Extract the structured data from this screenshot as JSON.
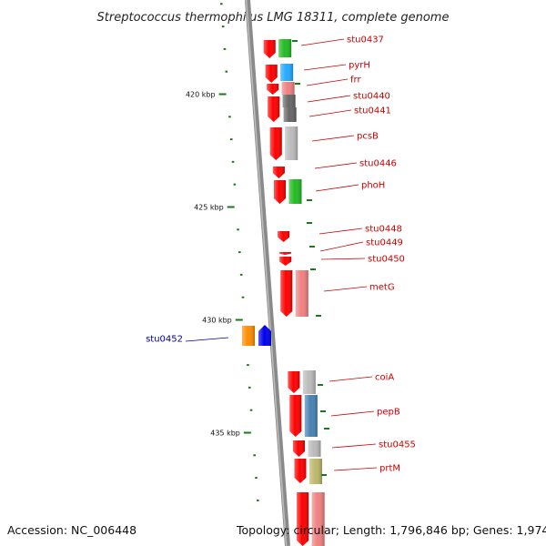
{
  "title": "Streptococcus thermophilus LMG 18311, complete genome",
  "colors": {
    "cds": "#ff0000",
    "backbone": "#808080",
    "tick": "#1a7a1a",
    "label_forward": "#cc0000",
    "label_reverse": "#000099"
  },
  "ticks": [
    {
      "label": "420 kbp",
      "kbp": 420
    },
    {
      "label": "425 kbp",
      "kbp": 425
    },
    {
      "label": "430 kbp",
      "kbp": 430
    },
    {
      "label": "435 kbp",
      "kbp": 435
    }
  ],
  "genes": [
    {
      "name": "stu0437",
      "strand": "forward",
      "color": "#22bb22"
    },
    {
      "name": "pyrH",
      "strand": "forward",
      "color": "#22aaff"
    },
    {
      "name": "frr",
      "strand": "forward",
      "color": "#f08080"
    },
    {
      "name": "stu0440",
      "strand": "forward",
      "color": "#666666"
    },
    {
      "name": "stu0441",
      "strand": "forward",
      "color": "#666666"
    },
    {
      "name": "pcsB",
      "strand": "forward",
      "color": "#bbbbbb"
    },
    {
      "name": "stu0446",
      "strand": "forward",
      "color": ""
    },
    {
      "name": "phoH",
      "strand": "forward",
      "color": "#22bb22"
    },
    {
      "name": "stu0448",
      "strand": "forward",
      "color": ""
    },
    {
      "name": "stu0449",
      "strand": "forward",
      "color": ""
    },
    {
      "name": "stu0450",
      "strand": "forward",
      "color": ""
    },
    {
      "name": "metG",
      "strand": "forward",
      "color": "#f08080"
    },
    {
      "name": "stu0452",
      "strand": "reverse",
      "color": "#ff8c00"
    },
    {
      "name": "coiA",
      "strand": "forward",
      "color": "#bbbbbb"
    },
    {
      "name": "pepB",
      "strand": "forward",
      "color": "#4682b4"
    },
    {
      "name": "stu0455",
      "strand": "forward",
      "color": "#bbbbbb"
    },
    {
      "name": "prtM",
      "strand": "forward",
      "color": "#bdb76b"
    }
  ],
  "footer": {
    "accession": "Accession: NC_006448",
    "topology": "Topology: circular; Length: 1,796,846 bp; Genes: 1,974"
  }
}
